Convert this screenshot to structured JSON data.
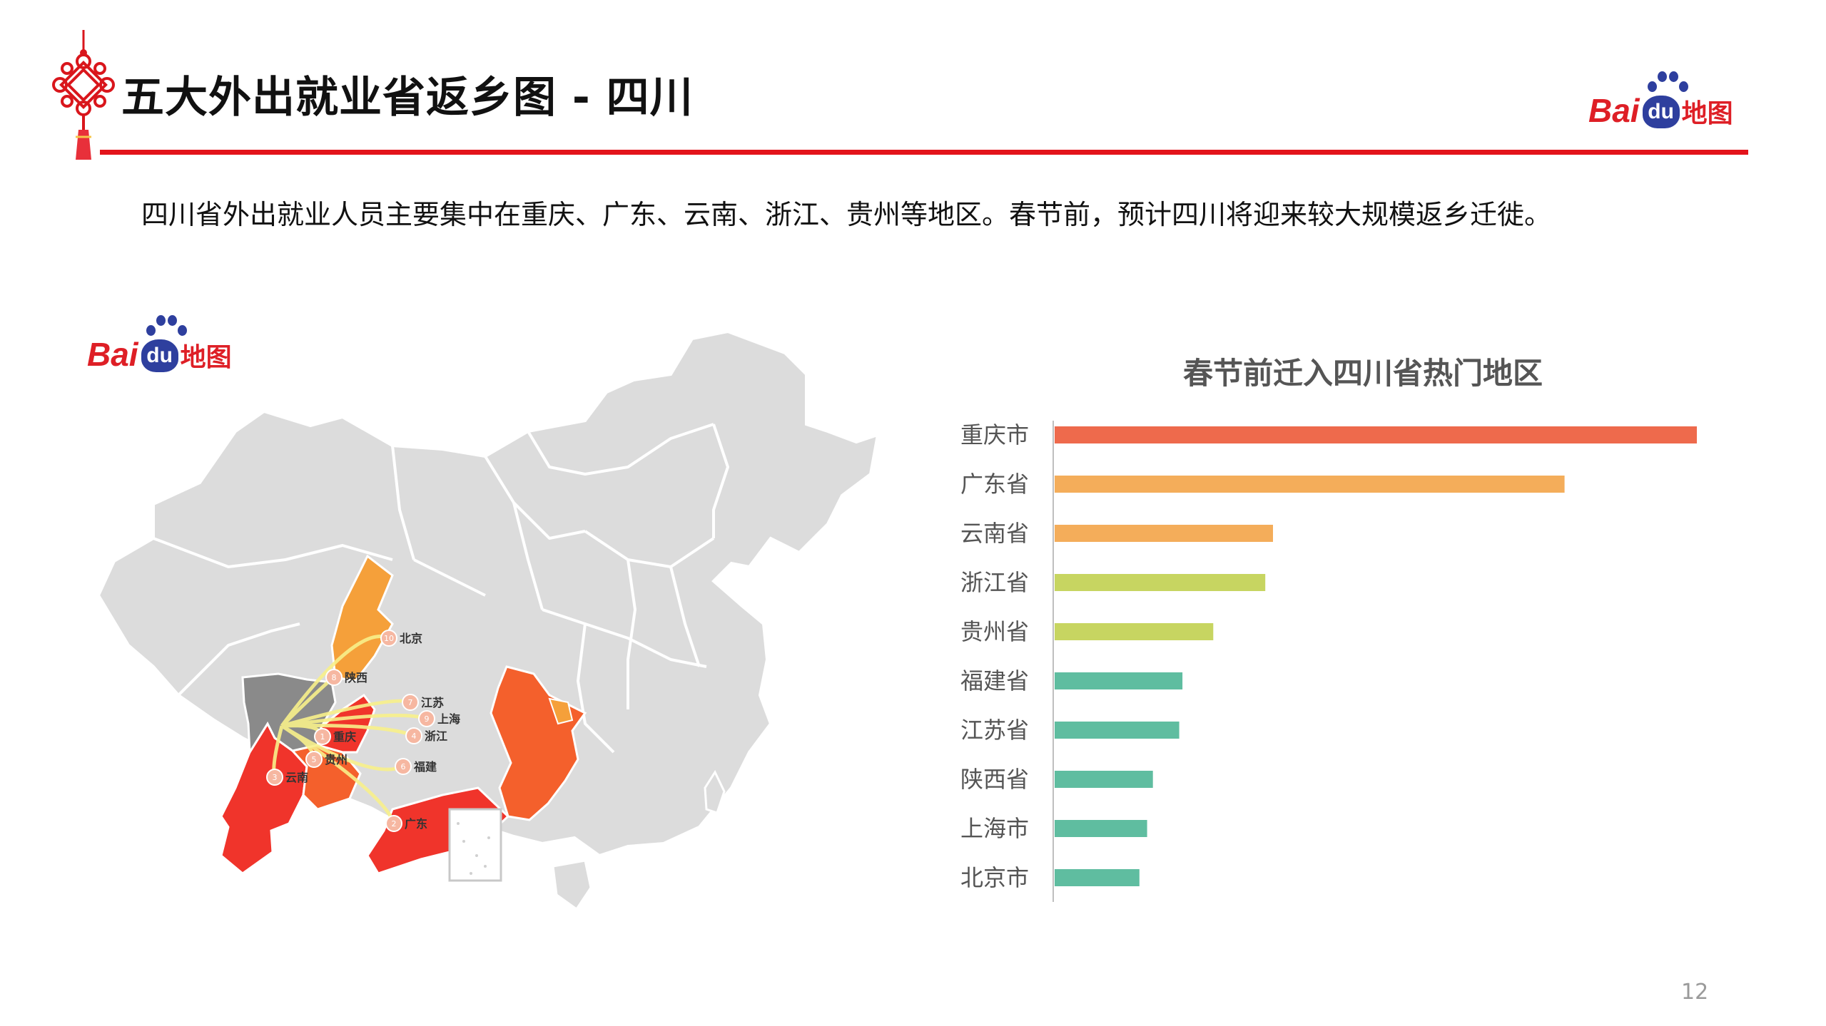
{
  "header": {
    "title": "五大外出就业省返乡图 - 四川",
    "logo": {
      "text_bai": "Bai",
      "text_du": "du",
      "text_ditu": "地图"
    }
  },
  "description": "四川省外出就业人员主要集中在重庆、广东、云南、浙江、贵州等地区。春节前，预计四川将迎来较大规模返乡迁徙。",
  "map": {
    "logo": {
      "text_bai": "Bai",
      "text_du": "du",
      "text_ditu": "地图"
    },
    "origin": "四川",
    "destinations": [
      {
        "rank": "1",
        "name": "重庆"
      },
      {
        "rank": "2",
        "name": "广东"
      },
      {
        "rank": "3",
        "name": "云南"
      },
      {
        "rank": "4",
        "name": "浙江"
      },
      {
        "rank": "5",
        "name": "贵州"
      },
      {
        "rank": "6",
        "name": "福建"
      },
      {
        "rank": "7",
        "name": "江苏"
      },
      {
        "rank": "8",
        "name": "陕西"
      },
      {
        "rank": "9",
        "name": "上海"
      },
      {
        "rank": "10",
        "name": "北京"
      }
    ],
    "colors": {
      "land": "#dcdcdc",
      "origin": "#8a8a8a",
      "high": "#f0342b",
      "mid": "#f4602c",
      "low": "#f5a03a",
      "flow": "#f8f08a"
    }
  },
  "chart_data": {
    "type": "bar",
    "orientation": "horizontal",
    "title": "春节前迁入四川省热门地区",
    "categories": [
      "重庆市",
      "广东省",
      "云南省",
      "浙江省",
      "贵州省",
      "福建省",
      "江苏省",
      "陕西省",
      "上海市",
      "北京市"
    ],
    "values": [
      100,
      79.4,
      34,
      32.8,
      24.7,
      19.9,
      19.4,
      15.3,
      14.4,
      13.2
    ],
    "colors": [
      "#ee6a4c",
      "#f4ad5a",
      "#f4ad5a",
      "#c7d561",
      "#c7d561",
      "#5fbda0",
      "#5fbda0",
      "#5fbda0",
      "#5fbda0",
      "#5fbda0"
    ],
    "xlabel": "",
    "ylabel": "",
    "grid": false,
    "legend": "none"
  },
  "footer": {
    "page_number": "12"
  }
}
